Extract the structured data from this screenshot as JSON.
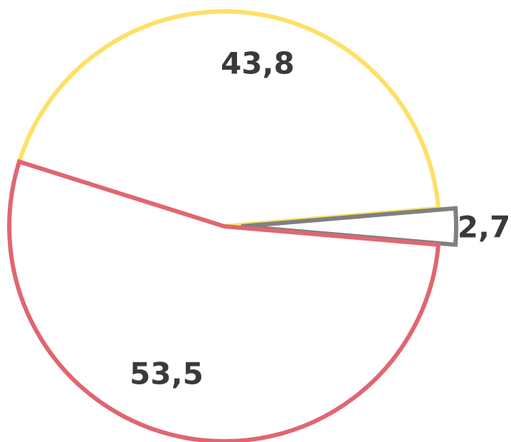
{
  "chart_data": {
    "type": "pie",
    "slices": [
      {
        "value": 43.8,
        "label": "43,8",
        "color": "#FFE066"
      },
      {
        "value": 2.7,
        "label": "2,7",
        "color": "#808080",
        "exploded": true
      },
      {
        "value": 53.5,
        "label": "53,5",
        "color": "#E06671"
      }
    ],
    "start_direction": "left",
    "direction": "clockwise",
    "legend": "none"
  }
}
